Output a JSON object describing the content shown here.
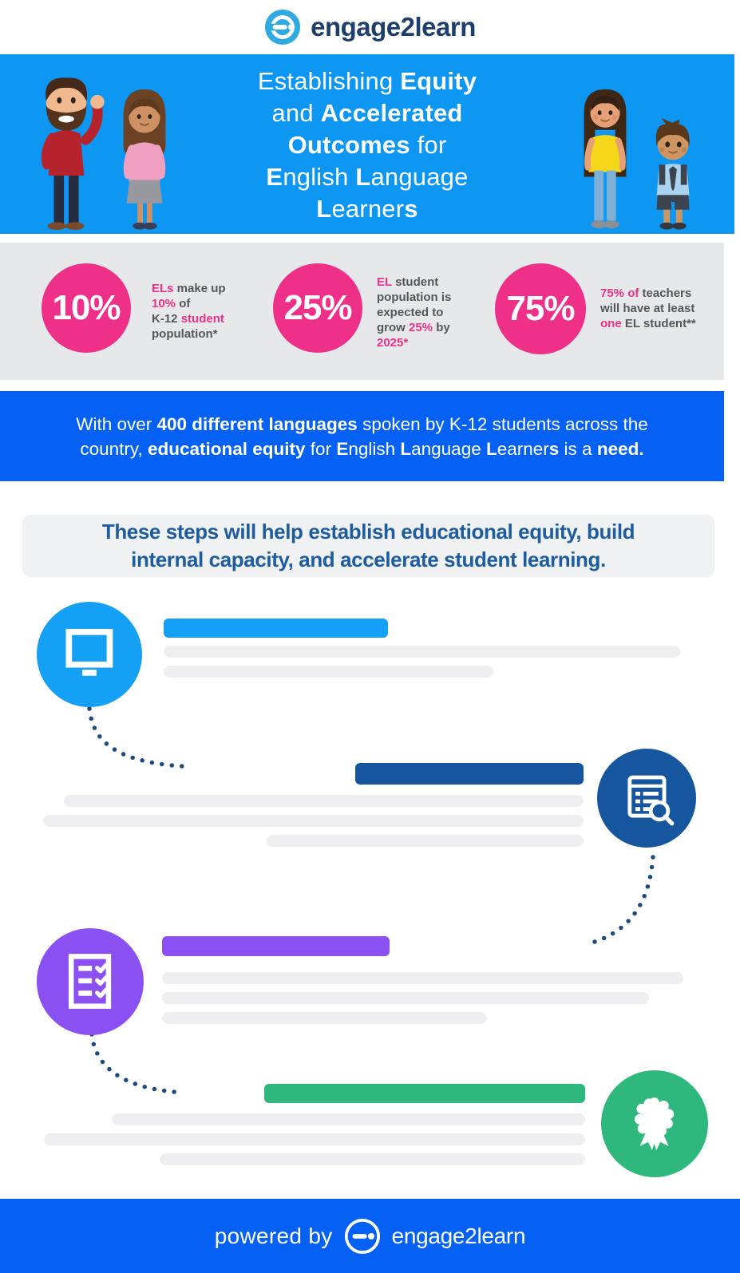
{
  "header": {
    "logo_text": "engage2learn"
  },
  "hero": {
    "title_lines": [
      {
        "segments": [
          {
            "text": "Establishing "
          },
          {
            "text": "Equity",
            "bold": true
          }
        ]
      },
      {
        "segments": [
          {
            "text": "and "
          },
          {
            "text": "Accelerated",
            "bold": true
          }
        ]
      },
      {
        "segments": [
          {
            "text": "Outcomes",
            "bold": true
          },
          {
            "text": " for"
          }
        ]
      },
      {
        "segments": [
          {
            "text": "E",
            "bold": true
          },
          {
            "text": "nglish "
          },
          {
            "text": "L",
            "bold": true
          },
          {
            "text": "anguage"
          }
        ]
      },
      {
        "segments": [
          {
            "text": "L",
            "bold": true
          },
          {
            "text": "earner"
          },
          {
            "text": "s",
            "bold": true
          }
        ]
      }
    ],
    "illustrations": [
      "man-waving",
      "woman-standing",
      "girl-standing",
      "boy-student"
    ]
  },
  "stats": [
    {
      "value": "10%",
      "desc_lines": [
        {
          "segments": [
            {
              "text": "ELs",
              "pink": true
            },
            {
              "text": " make up"
            }
          ]
        },
        {
          "segments": [
            {
              "text": "10%",
              "pink": true
            },
            {
              "text": " of"
            }
          ]
        },
        {
          "segments": [
            {
              "text": "K-12 "
            },
            {
              "text": "student",
              "pink": true
            }
          ]
        },
        {
          "segments": [
            {
              "text": "population*"
            }
          ]
        }
      ]
    },
    {
      "value": "25%",
      "desc_lines": [
        {
          "segments": [
            {
              "text": "EL",
              "pink": true
            },
            {
              "text": " student"
            }
          ]
        },
        {
          "segments": [
            {
              "text": "population is"
            }
          ]
        },
        {
          "segments": [
            {
              "text": "expected to"
            }
          ]
        },
        {
          "segments": [
            {
              "text": "grow "
            },
            {
              "text": "25%",
              "pink": true
            },
            {
              "text": " by"
            }
          ]
        },
        {
          "segments": [
            {
              "text": "2025",
              "pink": true
            },
            {
              "text": "*",
              "pink": true
            }
          ]
        }
      ]
    },
    {
      "value": "75%",
      "desc_lines": [
        {
          "segments": [
            {
              "text": "75% of",
              "pink": true
            },
            {
              "text": " teachers"
            }
          ]
        },
        {
          "segments": [
            {
              "text": "will have at least"
            }
          ]
        },
        {
          "segments": [
            {
              "text": "one",
              "pink": true
            },
            {
              "text": " EL student**"
            }
          ]
        }
      ]
    }
  ],
  "language_banner": {
    "lines": [
      {
        "segments": [
          {
            "text": "With over "
          },
          {
            "text": "400 different languages",
            "bold": true
          },
          {
            "text": " spoken by K-12 students across the"
          }
        ]
      },
      {
        "segments": [
          {
            "text": "country, "
          },
          {
            "text": "educational equity",
            "bold": true
          },
          {
            "text": " for "
          },
          {
            "text": "E",
            "bold": true
          },
          {
            "text": "nglish "
          },
          {
            "text": "L",
            "bold": true
          },
          {
            "text": "anguage "
          },
          {
            "text": "L",
            "bold": true
          },
          {
            "text": "earner"
          },
          {
            "text": "s",
            "bold": true
          },
          {
            "text": " is a "
          },
          {
            "text": "need.",
            "bold": true
          }
        ]
      }
    ]
  },
  "steps_intro": {
    "lines": [
      "These steps will help establish educational equity, build",
      "internal capacity, and accelerate student learning."
    ]
  },
  "steps": [
    {
      "icon": "monitor-icon",
      "color": "#14a0f4",
      "side": "left"
    },
    {
      "icon": "report-search-icon",
      "color": "#15569f",
      "side": "right"
    },
    {
      "icon": "checklist-icon",
      "color": "#8b50f2",
      "side": "left"
    },
    {
      "icon": "award-ribbon-icon",
      "color": "#2fb87d",
      "side": "right"
    }
  ],
  "footer": {
    "powered_by": "powered by",
    "logo_text": "engage2learn"
  },
  "colors": {
    "hero_azure": "#0d97f2",
    "royal_blue": "#0561f3",
    "pink": "#ef3088",
    "stats_band_gray": "#e7e8e9",
    "desc_text_gray": "#55565a",
    "intro_navy_text": "#1d5c9e",
    "step_azure": "#14a0f4",
    "step_navy": "#15569f",
    "step_purple": "#8b50f2",
    "step_green": "#2fb87d",
    "placeholder_gray": "#efeff1",
    "connector_dot_navy": "#1c4a80",
    "logo_azure": "#2fa9e2",
    "logo_navy": "#1e3f6d"
  }
}
